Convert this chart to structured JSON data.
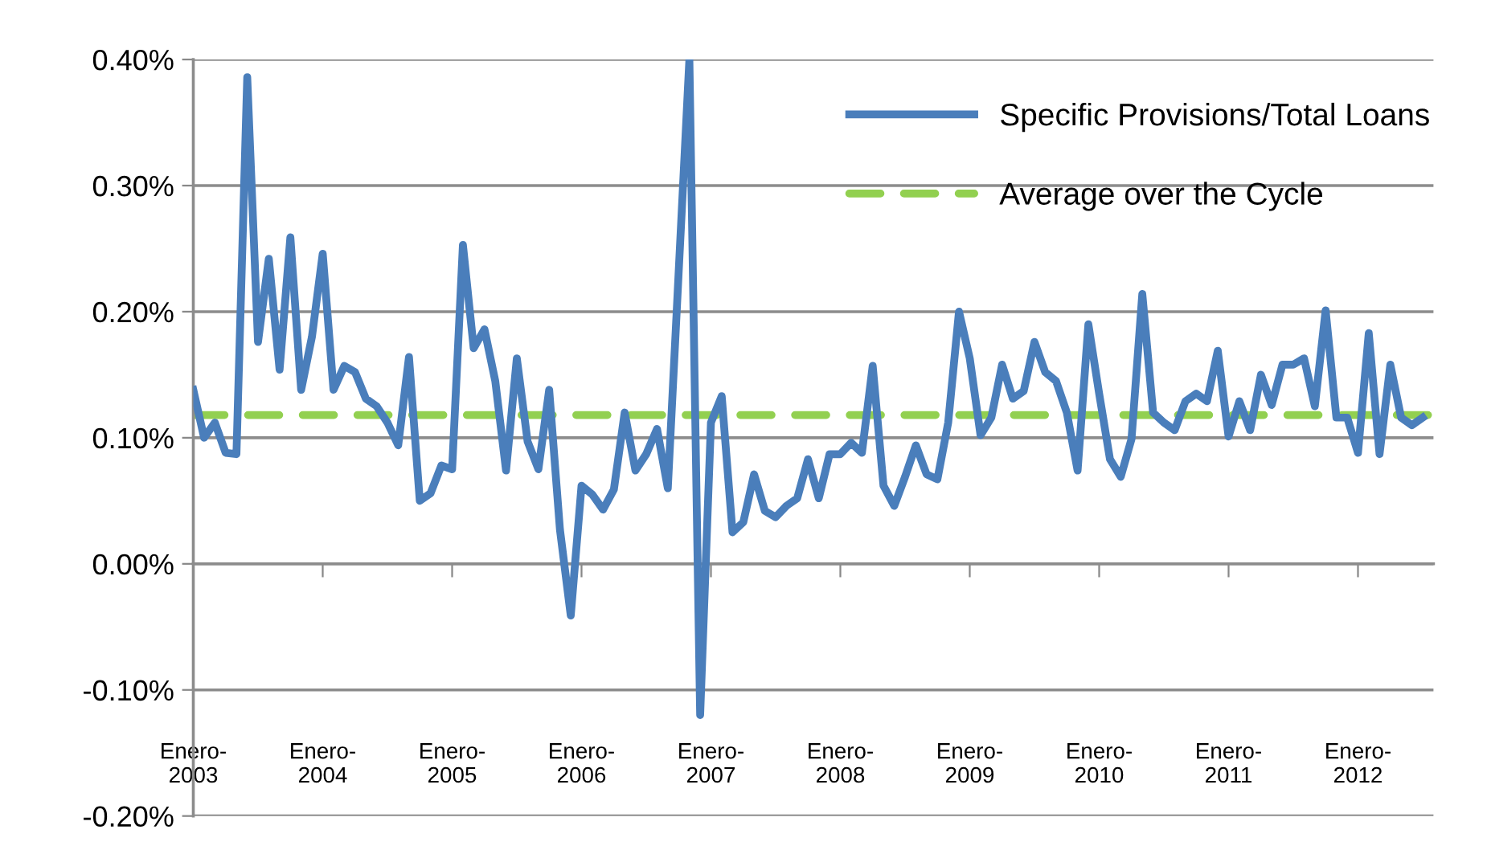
{
  "chart_data": {
    "type": "line",
    "categories": [
      "Enero-\n2003",
      null,
      null,
      null,
      null,
      null,
      null,
      null,
      null,
      null,
      null,
      null,
      "Enero-\n2004",
      null,
      null,
      null,
      null,
      null,
      null,
      null,
      null,
      null,
      null,
      null,
      "Enero-\n2005",
      null,
      null,
      null,
      null,
      null,
      null,
      null,
      null,
      null,
      null,
      null,
      "Enero-\n2006",
      null,
      null,
      null,
      null,
      null,
      null,
      null,
      null,
      null,
      null,
      null,
      "Enero-\n2007",
      null,
      null,
      null,
      null,
      null,
      null,
      null,
      null,
      null,
      null,
      null,
      "Enero-\n2008",
      null,
      null,
      null,
      null,
      null,
      null,
      null,
      null,
      null,
      null,
      null,
      "Enero-\n2009",
      null,
      null,
      null,
      null,
      null,
      null,
      null,
      null,
      null,
      null,
      null,
      "Enero-\n2010",
      null,
      null,
      null,
      null,
      null,
      null,
      null,
      null,
      null,
      null,
      null,
      "Enero-\n2011",
      null,
      null,
      null,
      null,
      null,
      null,
      null,
      null,
      null,
      null,
      null,
      "Enero-\n2012",
      null,
      null,
      null,
      null,
      null,
      null
    ],
    "series": [
      {
        "name": "Specific Provisions/Total Loans",
        "color": "#4a7ebb",
        "values": [
          0.138,
          0.1,
          0.112,
          0.088,
          0.087,
          0.386,
          0.176,
          0.242,
          0.154,
          0.259,
          0.138,
          0.18,
          0.246,
          0.138,
          0.157,
          0.152,
          0.131,
          0.125,
          0.112,
          0.094,
          0.164,
          0.05,
          0.056,
          0.078,
          0.075,
          0.253,
          0.171,
          0.186,
          0.145,
          0.074,
          0.163,
          0.097,
          0.075,
          0.138,
          0.027,
          -0.041,
          0.062,
          0.055,
          0.043,
          0.059,
          0.12,
          0.074,
          0.087,
          0.107,
          0.06,
          0.23,
          0.4,
          -0.12,
          0.112,
          0.133,
          0.025,
          0.033,
          0.071,
          0.042,
          0.037,
          0.046,
          0.052,
          0.083,
          0.052,
          0.087,
          0.087,
          0.096,
          0.088,
          0.157,
          0.062,
          0.046,
          0.069,
          0.094,
          0.071,
          0.067,
          0.112,
          0.2,
          0.163,
          0.102,
          0.116,
          0.158,
          0.131,
          0.137,
          0.176,
          0.152,
          0.145,
          0.12,
          0.074,
          0.19,
          0.135,
          0.083,
          0.069,
          0.099,
          0.214,
          0.12,
          0.112,
          0.106,
          0.129,
          0.135,
          0.129,
          0.169,
          0.101,
          0.129,
          0.106,
          0.15,
          0.126,
          0.158,
          0.158,
          0.163,
          0.125,
          0.201,
          0.116,
          0.116,
          0.088,
          0.183,
          0.087,
          0.158,
          0.116,
          0.11,
          0.116
        ]
      }
    ],
    "ref_lines": [
      {
        "axis": "y",
        "value": 0.118,
        "label": "Average over the Cycle",
        "color": "#92d050",
        "line_style": "dashed"
      }
    ],
    "ylim": [
      -0.2,
      0.4
    ],
    "yticks": [
      {
        "value": -0.2,
        "label": "-0.20%"
      },
      {
        "value": -0.1,
        "label": "-0.10%"
      },
      {
        "value": 0,
        "label": "0.00%"
      },
      {
        "value": 0.1,
        "label": "0.10%"
      },
      {
        "value": 0.2,
        "label": "0.20%"
      },
      {
        "value": 0.3,
        "label": "0.30%"
      },
      {
        "value": 0.4,
        "label": "0.40%"
      }
    ],
    "grid": "y",
    "legend": "top right",
    "line_style": "solid",
    "marker": "none"
  }
}
